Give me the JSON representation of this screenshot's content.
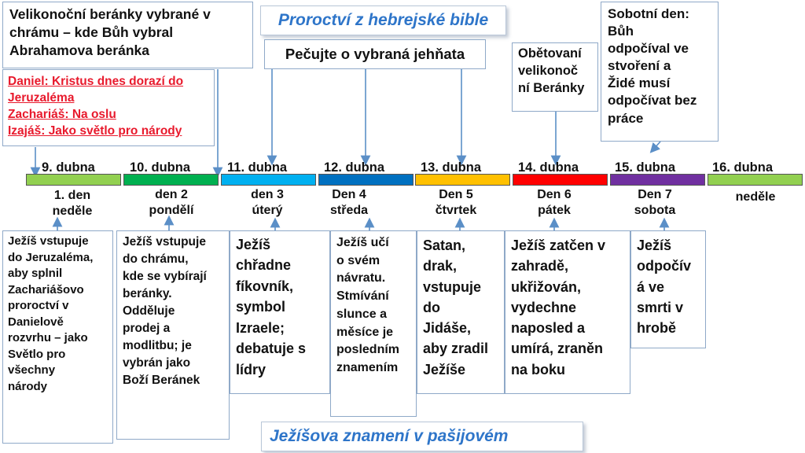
{
  "title_top": "Proroctví z hebrejské bible",
  "title_bottom": "Ježíšova znamení v pašijovém",
  "callouts": {
    "lamb_selection": "Velikonoční beránky vybrané v\nchrámu – kde Bůh vybral\nAbrahamova beránka",
    "prophecies": [
      "Daniel: Kristus dnes dorazí do Jeruzaléma",
      "Zachariáš: Na oslu",
      "Izajáš: Jako světlo pro národy"
    ],
    "care_lambs": "Pečujte o vybraná jehňata",
    "sacrificed": "Obětovaní\nvelikonoč\nní Beránky",
    "sabbath": "Sobotní den:\nBůh\nodpočíval ve\nstvoření a\nŽidé musí\nodpočívat bez\npráce"
  },
  "timeline": [
    {
      "date": "9. dubna",
      "sub": "1. den\nneděle",
      "color": "#92d050"
    },
    {
      "date": "10. dubna",
      "sub": "den 2\npondělí",
      "color": "#00b050"
    },
    {
      "date": "11. dubna",
      "sub": "den 3\núterý",
      "color": "#00b0f0"
    },
    {
      "date": "12. dubna",
      "sub": "Den 4\nstředa",
      "color": "#0070c0"
    },
    {
      "date": "13. dubna",
      "sub": "Den 5\nčtvrtek",
      "color": "#ffc000"
    },
    {
      "date": "14. dubna",
      "sub": "Den 6\npátek",
      "color": "#ff0000"
    },
    {
      "date": "15. dubna",
      "sub": "Den 7\nsobota",
      "color": "#7030a0"
    },
    {
      "date": "16. dubna",
      "sub": "neděle",
      "color": "#92d050"
    }
  ],
  "events": [
    "Ježíš vstupuje\ndo Jeruzaléma,\naby splnil\nZachariášovo\nproroctví v\nDanielově\nrozvrhu – jako\nSvětlo pro\nvšechny\nnárody",
    "Ježíš vstupuje\ndo chrámu,\nkde se vybírají\nberánky.\nOdděluje\nprodej a\nmodlitbu; je\nvybrán jako\nBoží Beránek",
    "Ježíš\nchřadne\nfíkovník,\nsymbol\nIzraele;\ndebatuje s\nlídry",
    "Ježíš učí\no svém\nnávratu.\nStmívání\nslunce a\nměsíce je\nposledním\nznamením",
    "Satan,\ndrak,\nvstupuje\ndo\nJidáše,\naby zradil\nJežíše",
    "Ježíš zatčen v\nzahradě,\nukřižován,\nvydechne\nnaposled a\numírá, zraněn\nna boku",
    "Ježíš\nodpočív\ná ve\nsmrti v\nhrobě"
  ]
}
